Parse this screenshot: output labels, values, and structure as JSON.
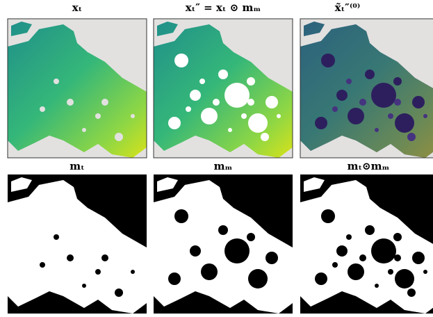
{
  "panels": [
    {
      "title": "𝐱ₜ"
    },
    {
      "title": "𝐱ₜ″ = 𝐱ₜ ⊙ 𝐦ₘ"
    },
    {
      "title": "𝐱̃ₜ″⁽⁰⁾"
    },
    {
      "title": "𝐦ₜ"
    },
    {
      "title": "𝐦ₘ"
    },
    {
      "title": "𝐦ₜ⊙𝐦ₘ"
    }
  ]
}
